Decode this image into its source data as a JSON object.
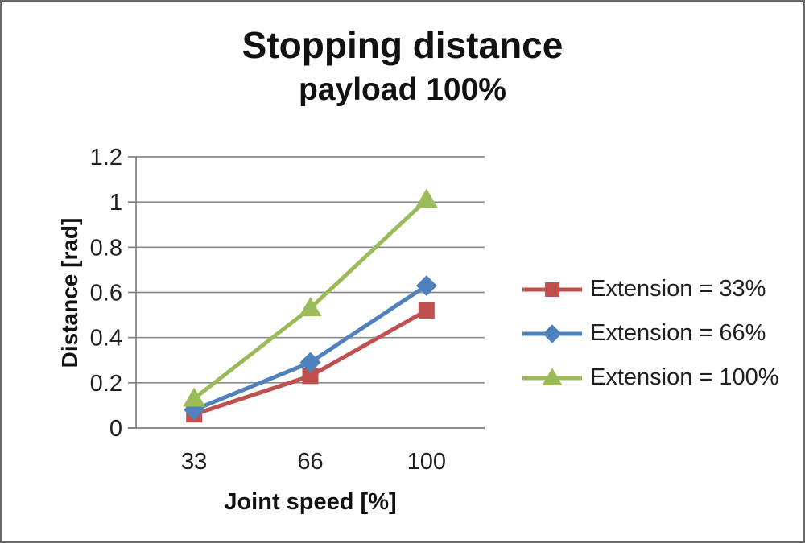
{
  "chart_data": {
    "type": "line",
    "title": "Stopping distance",
    "subtitle": "payload 100%",
    "xlabel": "Joint speed [%]",
    "ylabel": "Distance [rad]",
    "categories": [
      "33",
      "66",
      "100"
    ],
    "y_ticks": [
      0,
      0.2,
      0.4,
      0.6,
      0.8,
      1,
      1.2
    ],
    "y_tick_labels": [
      "0",
      "0.2",
      "0.4",
      "0.6",
      "0.8",
      "1",
      "1.2"
    ],
    "ylim": [
      0,
      1.2
    ],
    "grid": "horizontal-gridlines",
    "legend_position": "right-center",
    "series": [
      {
        "name": "Extension = 33%",
        "marker": "square",
        "color": "#C0504D",
        "values": [
          0.06,
          0.23,
          0.52
        ]
      },
      {
        "name": "Extension = 66%",
        "marker": "diamond",
        "color": "#4F81BD",
        "values": [
          0.08,
          0.29,
          0.63
        ]
      },
      {
        "name": "Extension = 100%",
        "marker": "triangle",
        "color": "#9BBB59",
        "values": [
          0.13,
          0.53,
          1.01
        ]
      }
    ],
    "colors": {
      "axis": "#7f7f7f",
      "gridline": "#8a8a8a",
      "text": "#1f1f1f",
      "frame_border": "#6a6a6a",
      "background": "#ffffff"
    }
  }
}
